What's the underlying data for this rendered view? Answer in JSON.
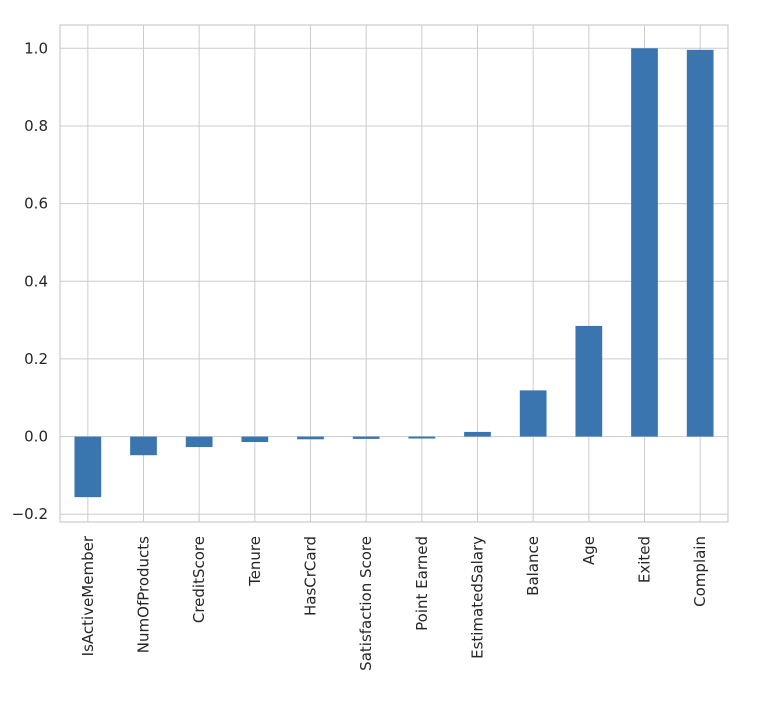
{
  "chart_data": {
    "type": "bar",
    "title": "",
    "xlabel": "",
    "ylabel": "",
    "categories": [
      "IsActiveMember",
      "NumOfProducts",
      "CreditScore",
      "Tenure",
      "HasCrCard",
      "Satisfaction Score",
      "Point Earned",
      "EstimatedSalary",
      "Balance",
      "Age",
      "Exited",
      "Complain"
    ],
    "values": [
      -0.156,
      -0.048,
      -0.027,
      -0.014,
      -0.007,
      -0.006,
      -0.005,
      0.012,
      0.119,
      0.285,
      1.0,
      0.996
    ],
    "ylim": [
      -0.22,
      1.06
    ],
    "yticks": [
      -0.2,
      0.0,
      0.2,
      0.4,
      0.6,
      0.8,
      1.0
    ],
    "ytick_labels": [
      "−0.2",
      "0.0",
      "0.2",
      "0.4",
      "0.6",
      "0.8",
      "1.0"
    ],
    "bar_color": "#3a75af",
    "grid": true,
    "legend": "none"
  }
}
